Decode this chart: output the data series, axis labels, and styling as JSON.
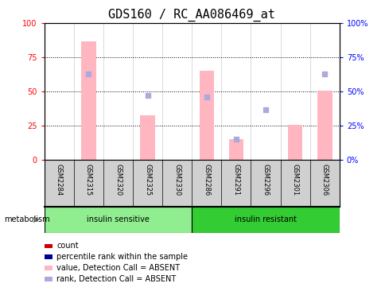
{
  "title": "GDS160 / RC_AA086469_at",
  "samples": [
    "GSM2284",
    "GSM2315",
    "GSM2320",
    "GSM2325",
    "GSM2330",
    "GSM2286",
    "GSM2291",
    "GSM2296",
    "GSM2301",
    "GSM2306"
  ],
  "pink_bar_values": [
    0,
    87,
    0,
    33,
    0,
    65,
    15,
    0,
    26,
    51
  ],
  "blue_square_values": [
    null,
    63,
    null,
    47,
    null,
    46,
    15,
    37,
    null,
    63
  ],
  "group1_label": "insulin sensitive",
  "group2_label": "insulin resistant",
  "group1_count": 5,
  "group2_count": 5,
  "group1_color": "#90EE90",
  "group2_color": "#33CC33",
  "ylim": [
    0,
    100
  ],
  "yticks": [
    0,
    25,
    50,
    75,
    100
  ],
  "left_tick_color": "#FF0000",
  "right_tick_color": "#0000FF",
  "pink_bar_color": "#FFB6C1",
  "blue_sq_color": "#AAAADD",
  "legend_items": [
    {
      "label": "count",
      "color": "#CC0000"
    },
    {
      "label": "percentile rank within the sample",
      "color": "#000099"
    },
    {
      "label": "value, Detection Call = ABSENT",
      "color": "#FFB6C1"
    },
    {
      "label": "rank, Detection Call = ABSENT",
      "color": "#AAAADD"
    }
  ],
  "metabolism_label": "metabolism",
  "grid_color": "black",
  "bg_color": "#FFFFFF",
  "header_bg_color": "#D0D0D0",
  "title_fontsize": 11,
  "tick_fontsize": 7,
  "sample_label_fontsize": 6,
  "group_label_fontsize": 7,
  "legend_fontsize": 7
}
